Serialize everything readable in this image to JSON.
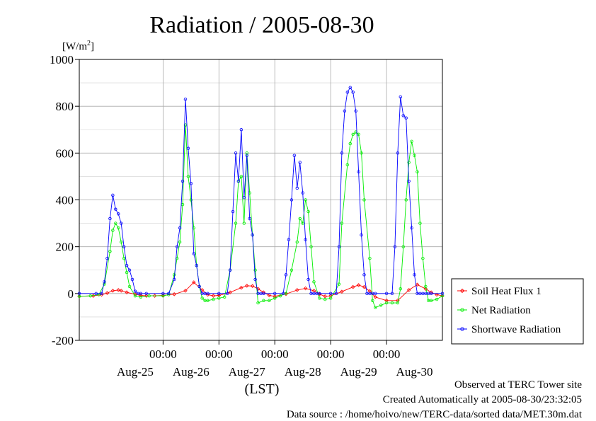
{
  "chart_data": {
    "type": "line",
    "title": "Radiation / 2005-08-30",
    "ylabel_unit": "[W/m",
    "ylabel_sup": "2",
    "ylabel_close": "]",
    "xlabel": "(LST)",
    "ylim": [
      -200,
      1000
    ],
    "yticks": [
      -200,
      0,
      200,
      400,
      600,
      800,
      1000
    ],
    "xlim": [
      -0.5,
      6.0
    ],
    "x_unit": "days, 00:00 of Aug-25 = 0",
    "xtick_positions": [
      1,
      2,
      3,
      4,
      5
    ],
    "xtick_time_labels": [
      "00:00",
      "00:00",
      "00:00",
      "00:00",
      "00:00"
    ],
    "day_label_positions": [
      0.5,
      1.5,
      2.5,
      3.5,
      4.5,
      5.5
    ],
    "day_labels": [
      "Aug-25",
      "Aug-26",
      "Aug-27",
      "Aug-28",
      "Aug-29",
      "Aug-30"
    ],
    "grid": true,
    "legend_position": "right",
    "series": [
      {
        "name": "Soil Heat Flux 1",
        "color": "#ff0000",
        "marker": "diamond",
        "x": [
          -0.5,
          -0.25,
          -0.1,
          0.0,
          0.1,
          0.2,
          0.25,
          0.35,
          0.5,
          0.6,
          0.7,
          0.85,
          1.0,
          1.2,
          1.4,
          1.55,
          1.7,
          1.8,
          1.9,
          2.0,
          2.2,
          2.4,
          2.5,
          2.6,
          2.7,
          2.8,
          2.9,
          3.0,
          3.2,
          3.4,
          3.55,
          3.7,
          3.8,
          3.9,
          4.0,
          4.2,
          4.4,
          4.5,
          4.6,
          4.7,
          4.8,
          5.0,
          5.2,
          5.4,
          5.55,
          5.7,
          5.8,
          5.9,
          6.0
        ],
        "y": [
          -12,
          -10,
          -5,
          2,
          12,
          15,
          12,
          5,
          -3,
          -8,
          -10,
          -10,
          -8,
          -3,
          12,
          48,
          15,
          -5,
          -10,
          -8,
          5,
          25,
          33,
          32,
          20,
          5,
          -8,
          -12,
          -2,
          15,
          22,
          12,
          -3,
          -12,
          -10,
          8,
          28,
          36,
          28,
          10,
          -15,
          -30,
          -30,
          15,
          38,
          20,
          5,
          -5,
          -10
        ]
      },
      {
        "name": "Net Radiation",
        "color": "#00ee00",
        "marker": "circle",
        "x": [
          -0.5,
          -0.3,
          -0.15,
          -0.05,
          0.05,
          0.1,
          0.15,
          0.2,
          0.25,
          0.3,
          0.35,
          0.4,
          0.5,
          0.6,
          0.75,
          1.0,
          1.1,
          1.2,
          1.25,
          1.3,
          1.35,
          1.4,
          1.45,
          1.5,
          1.55,
          1.6,
          1.65,
          1.7,
          1.75,
          1.8,
          1.9,
          2.0,
          2.1,
          2.2,
          2.3,
          2.35,
          2.4,
          2.45,
          2.5,
          2.55,
          2.6,
          2.65,
          2.7,
          2.8,
          2.9,
          3.0,
          3.1,
          3.2,
          3.3,
          3.4,
          3.45,
          3.5,
          3.55,
          3.6,
          3.65,
          3.7,
          3.8,
          3.9,
          4.0,
          4.15,
          4.2,
          4.3,
          4.35,
          4.4,
          4.45,
          4.5,
          4.55,
          4.6,
          4.7,
          4.75,
          4.8,
          4.9,
          5.0,
          5.1,
          5.2,
          5.25,
          5.3,
          5.35,
          5.4,
          5.45,
          5.5,
          5.55,
          5.6,
          5.65,
          5.7,
          5.75,
          5.8,
          5.9,
          6.0
        ],
        "y": [
          -12,
          -10,
          -5,
          40,
          180,
          270,
          300,
          280,
          220,
          150,
          90,
          30,
          -10,
          -15,
          -10,
          -10,
          -5,
          80,
          150,
          220,
          380,
          720,
          500,
          400,
          280,
          120,
          30,
          -20,
          -30,
          -30,
          -25,
          -20,
          -15,
          100,
          300,
          480,
          500,
          300,
          600,
          430,
          250,
          100,
          -40,
          -30,
          -30,
          -20,
          -10,
          0,
          100,
          220,
          320,
          300,
          400,
          350,
          200,
          50,
          -20,
          -25,
          -20,
          40,
          300,
          550,
          640,
          680,
          690,
          680,
          600,
          400,
          150,
          -30,
          -60,
          -50,
          -40,
          -40,
          -40,
          20,
          200,
          400,
          560,
          650,
          590,
          520,
          300,
          150,
          30,
          -30,
          -30,
          -25,
          -10
        ]
      },
      {
        "name": "Shortwave Radiation",
        "color": "#0000ff",
        "marker": "circle",
        "x": [
          -0.5,
          -0.2,
          -0.1,
          -0.05,
          0.0,
          0.05,
          0.1,
          0.15,
          0.2,
          0.25,
          0.3,
          0.35,
          0.4,
          0.45,
          0.5,
          0.55,
          0.6,
          0.7,
          1.0,
          1.1,
          1.2,
          1.25,
          1.3,
          1.35,
          1.4,
          1.45,
          1.5,
          1.55,
          1.6,
          1.65,
          1.7,
          1.75,
          1.8,
          2.0,
          2.15,
          2.2,
          2.25,
          2.3,
          2.35,
          2.4,
          2.45,
          2.5,
          2.55,
          2.6,
          2.65,
          2.7,
          2.75,
          2.8,
          3.0,
          3.15,
          3.2,
          3.25,
          3.3,
          3.35,
          3.4,
          3.45,
          3.5,
          3.55,
          3.6,
          3.65,
          3.7,
          3.75,
          3.8,
          4.0,
          4.1,
          4.15,
          4.2,
          4.25,
          4.3,
          4.35,
          4.4,
          4.45,
          4.5,
          4.55,
          4.6,
          4.65,
          4.7,
          4.75,
          4.8,
          5.0,
          5.1,
          5.15,
          5.2,
          5.25,
          5.3,
          5.35,
          5.4,
          5.45,
          5.5,
          5.55,
          5.6,
          5.65,
          5.7,
          5.75,
          5.8,
          6.0
        ],
        "y": [
          0,
          0,
          0,
          50,
          150,
          320,
          420,
          360,
          340,
          300,
          200,
          120,
          100,
          60,
          10,
          0,
          0,
          0,
          0,
          0,
          60,
          200,
          280,
          480,
          830,
          620,
          470,
          170,
          120,
          30,
          0,
          0,
          0,
          0,
          0,
          100,
          350,
          600,
          480,
          700,
          410,
          590,
          320,
          250,
          60,
          0,
          0,
          0,
          0,
          0,
          80,
          230,
          400,
          590,
          450,
          560,
          430,
          230,
          60,
          0,
          0,
          0,
          0,
          0,
          0,
          200,
          600,
          780,
          860,
          880,
          860,
          780,
          520,
          250,
          80,
          0,
          0,
          0,
          0,
          0,
          0,
          200,
          600,
          840,
          760,
          750,
          480,
          280,
          80,
          0,
          0,
          0,
          0,
          0,
          0,
          0
        ]
      }
    ]
  },
  "footer": {
    "line1": "Observed at TERC Tower site",
    "line2": "Created Automatically at 2005-08-30/23:32:05",
    "line3": "Data source : /home/hoivo/new/TERC-data/sorted  data/MET.30m.dat"
  }
}
